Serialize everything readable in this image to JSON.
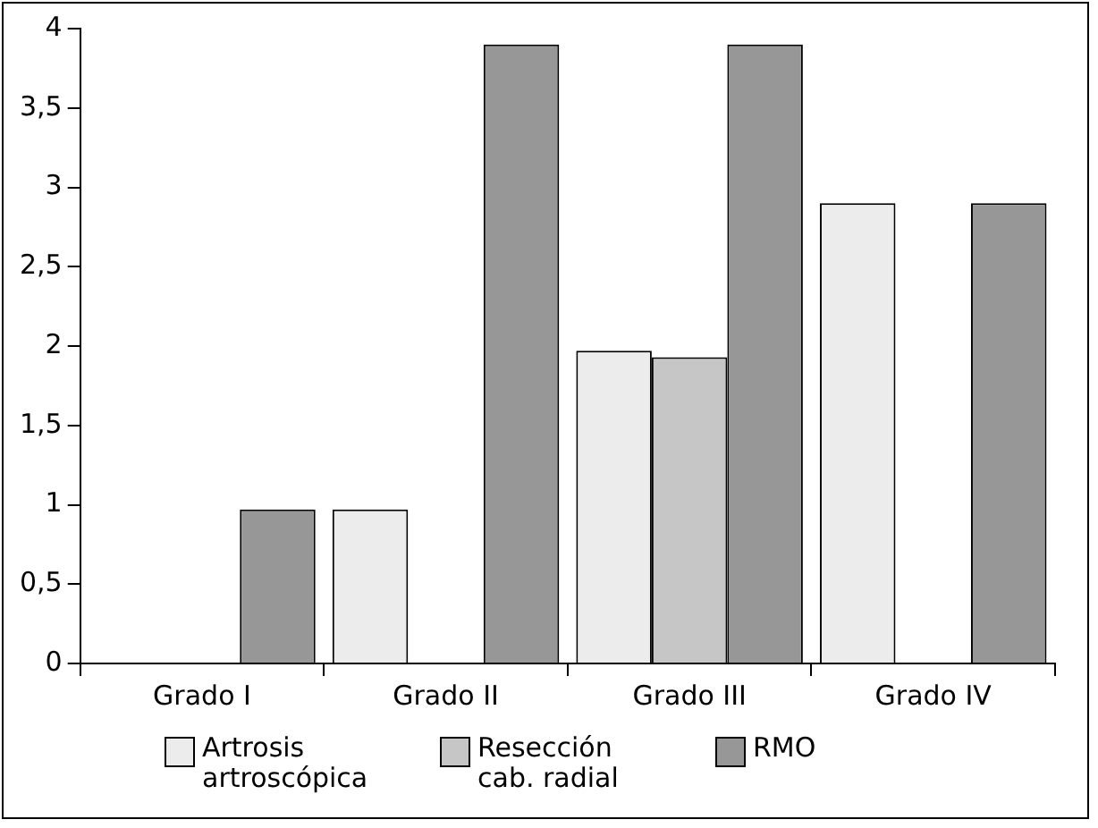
{
  "chart_data": {
    "type": "bar",
    "categories": [
      "Grado I",
      "Grado II",
      "Grado III",
      "Grado IV"
    ],
    "series": [
      {
        "name": "Artrosis artroscópica",
        "color": "#ececec",
        "values": [
          null,
          0.97,
          1.97,
          2.9
        ]
      },
      {
        "name": "Resección cab. radial",
        "color": "#c6c6c6",
        "values": [
          null,
          null,
          1.93,
          null
        ]
      },
      {
        "name": "RMO",
        "color": "#979797",
        "values": [
          0.97,
          3.9,
          3.9,
          2.9
        ]
      }
    ],
    "ylim": [
      0,
      4
    ],
    "yticks": [
      0,
      {
        "value": 0.5,
        "label": "0,5"
      },
      1,
      {
        "value": 1.5,
        "label": "1,5"
      },
      2,
      {
        "value": 2.5,
        "label": "2,5"
      },
      3,
      {
        "value": 3.5,
        "label": "3,5"
      },
      4
    ],
    "grid": false,
    "legend": "bottom"
  }
}
